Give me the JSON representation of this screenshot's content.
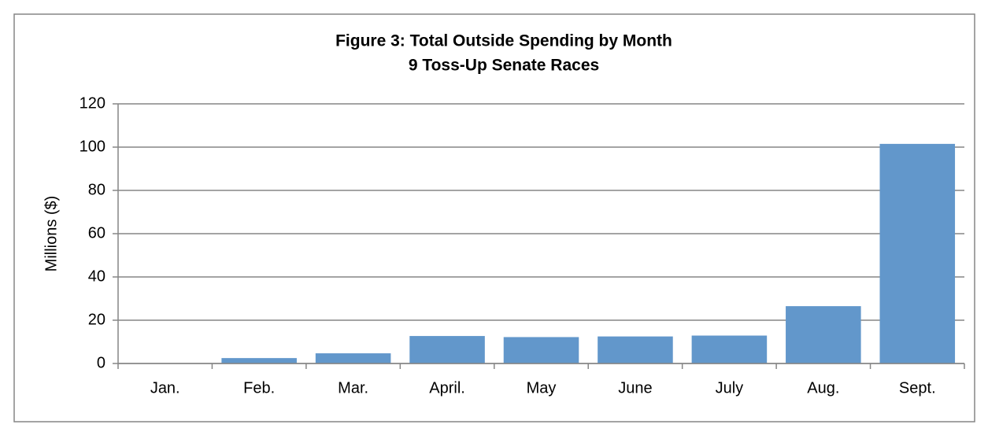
{
  "chart_data": {
    "type": "bar",
    "title": [
      "Figure 3: Total Outside Spending by Month",
      "9 Toss-Up Senate Races"
    ],
    "y_label": "Millions  ($)",
    "categories": [
      "Jan.",
      "Feb.",
      "Mar.",
      "April.",
      "May",
      "June",
      "July",
      "Aug.",
      "Sept."
    ],
    "values": [
      0.1,
      2.5,
      4.7,
      12.7,
      12.2,
      12.5,
      12.9,
      26.5,
      101.5
    ],
    "color": "#6297cb",
    "ylim": [
      0,
      120
    ],
    "yticks": [
      0,
      20,
      40,
      60,
      80,
      100,
      120
    ],
    "grid": true
  }
}
